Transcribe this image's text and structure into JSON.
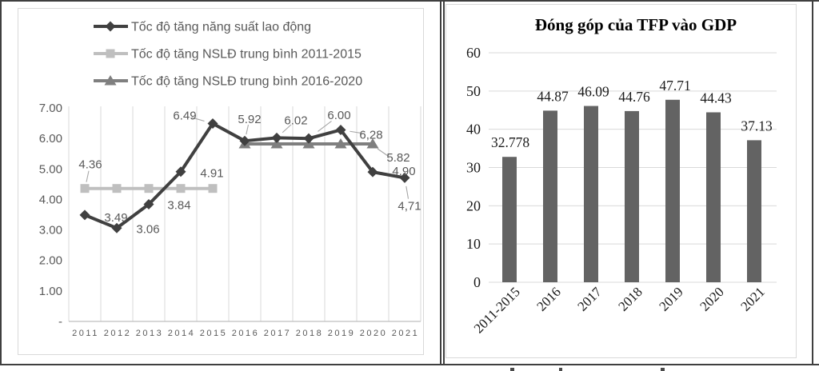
{
  "figure": {
    "left_panel_name": "labor-productivity-growth-line-chart",
    "right_panel_name": "tfp-contribution-bar-chart"
  },
  "chart_data": [
    {
      "type": "line",
      "title": "",
      "x_categories": [
        "2011",
        "2012",
        "2013",
        "2014",
        "2015",
        "2016",
        "2017",
        "2018",
        "2019",
        "2020",
        "2021"
      ],
      "series": [
        {
          "name": "Tốc độ tăng năng suất lao động",
          "marker": "diamond",
          "color": "#404040",
          "values": [
            3.49,
            3.06,
            3.84,
            4.91,
            6.49,
            5.92,
            6.02,
            6.0,
            6.28,
            4.9,
            4.71
          ],
          "data_labels": [
            "3.49",
            "3.06",
            "3.84",
            "4.91",
            "6.49",
            "5.92",
            "6.02",
            "6.00",
            "6,28",
            "4.90",
            "4,71"
          ]
        },
        {
          "name": "Tốc độ tăng NSLĐ trung bình 2011-2015",
          "marker": "square",
          "color": "#bfbfbf",
          "span_category_indexes": [
            0,
            4
          ],
          "value": 4.36,
          "data_label": "4.36"
        },
        {
          "name": "Tốc độ tăng NSLĐ trung bình 2016-2020",
          "marker": "triangle",
          "color": "#7f7f7f",
          "span_category_indexes": [
            5,
            9
          ],
          "value": 5.82,
          "data_label": "5.82"
        }
      ],
      "ylim": [
        0,
        7
      ],
      "ytick_values": [
        7,
        6,
        5,
        4,
        3,
        2,
        1,
        0
      ],
      "ytick_labels": [
        "7.00",
        "6.00",
        "5.00",
        "4.00",
        "3.00",
        "2.00",
        "1.00",
        "-"
      ],
      "grid": "vertical",
      "legend_position": "top-left",
      "label_color": "#595959",
      "gridline_color": "#d9d9d9",
      "axis_color": "#bfbfbf"
    },
    {
      "type": "bar",
      "title": "Đóng góp của TFP vào GDP",
      "categories": [
        "2011-2015",
        "2016",
        "2017",
        "2018",
        "2019",
        "2020",
        "2021"
      ],
      "values": [
        32.778,
        44.87,
        46.09,
        44.76,
        47.71,
        44.43,
        37.13
      ],
      "data_labels": [
        "32.778",
        "44.87",
        "46.09",
        "44.76",
        "47.71",
        "44.43",
        "37.13"
      ],
      "ylim": [
        0,
        60
      ],
      "ytick_values": [
        60,
        50,
        40,
        30,
        20,
        10,
        0
      ],
      "ytick_labels": [
        "60",
        "50",
        "40",
        "30",
        "20",
        "10",
        "0"
      ],
      "bar_color": "#636363",
      "grid": "horizontal",
      "xtick_rotation_deg": 45,
      "text_color": "#1a1a1a",
      "gridline_color": "#d9d9d9"
    }
  ]
}
